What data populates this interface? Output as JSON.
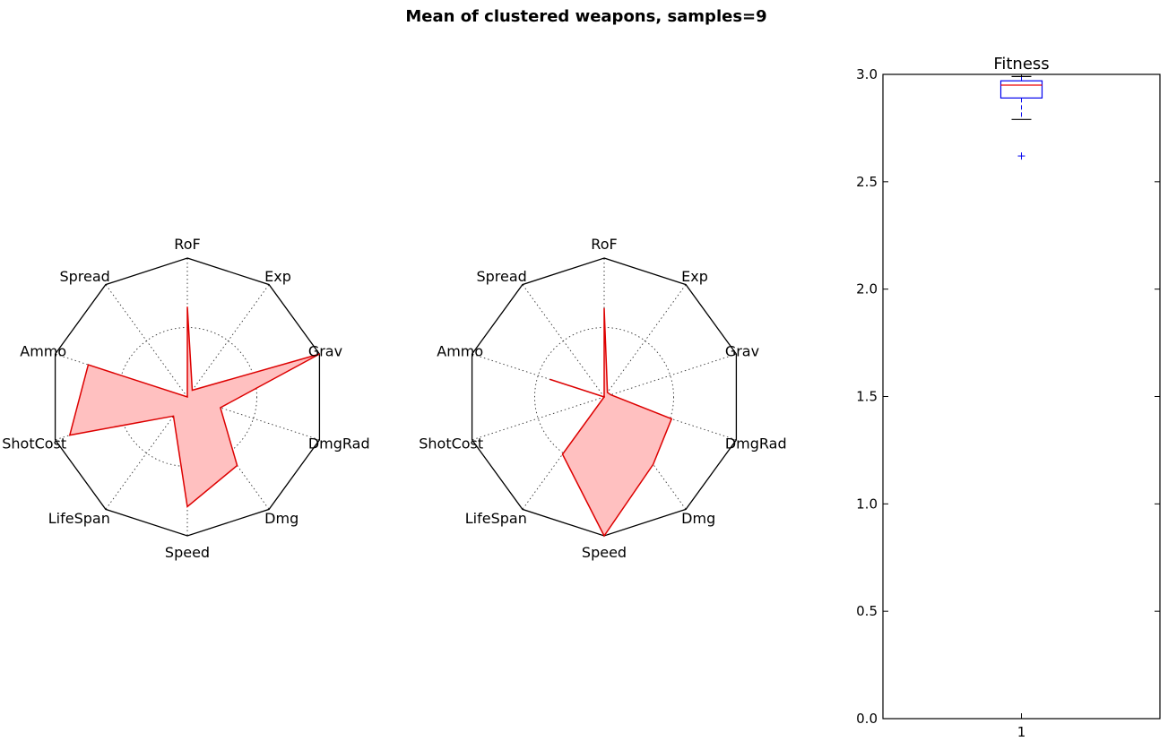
{
  "figure": {
    "title": "Mean of clustered weapons, samples=9"
  },
  "chart_data": [
    {
      "type": "radar",
      "axes": [
        "RoF",
        "Exp",
        "Grav",
        "DmgRad",
        "Dmg",
        "Speed",
        "LifeSpan",
        "ShotCost",
        "Ammo",
        "Spread"
      ],
      "rmax": 1.0,
      "grid_rings": [
        0.5
      ],
      "values": [
        0.65,
        0.06,
        1.0,
        0.25,
        0.61,
        0.79,
        0.17,
        0.89,
        0.75,
        0.0
      ],
      "fill_color": "#ffc0c0",
      "line_color": "#dd0000"
    },
    {
      "type": "radar",
      "axes": [
        "RoF",
        "Exp",
        "Grav",
        "DmgRad",
        "Dmg",
        "Speed",
        "LifeSpan",
        "ShotCost",
        "Ammo",
        "Spread"
      ],
      "rmax": 1.0,
      "grid_rings": [
        0.5
      ],
      "values": [
        0.64,
        0.04,
        0.05,
        0.51,
        0.6,
        1.0,
        0.51,
        0.0,
        0.41,
        0.0
      ],
      "fill_color": "#ffc0c0",
      "line_color": "#dd0000"
    },
    {
      "type": "box",
      "title": "Fitness",
      "categories": [
        "1"
      ],
      "ylim": [
        0.0,
        3.0
      ],
      "yticks": [
        "0.0",
        "0.5",
        "1.0",
        "1.5",
        "2.0",
        "2.5",
        "3.0"
      ],
      "box": {
        "whisker_low": 2.79,
        "q1": 2.89,
        "median": 2.95,
        "q3": 2.97,
        "whisker_high": 2.99,
        "outliers": [
          2.62
        ]
      },
      "box_color": "#0000ee",
      "median_color": "#ee0000"
    }
  ]
}
